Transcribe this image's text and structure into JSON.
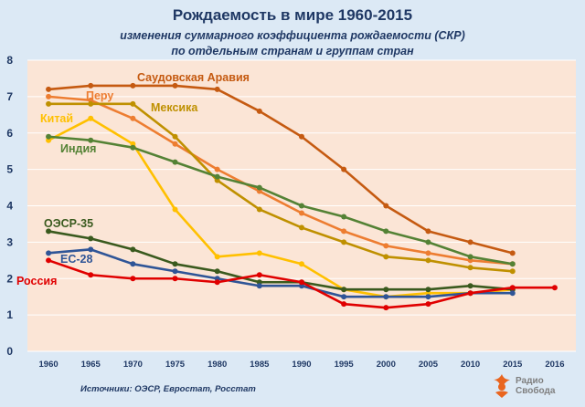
{
  "header": {
    "title": "Рождаемость в мире 1960-2015",
    "subtitle_line1": "изменения суммарного коэффициента рождаемости (СКР)",
    "subtitle_line2": "по отдельным странам и группам стран"
  },
  "footer": {
    "source": "Источники: ОЭСР, Евростат, Росстат",
    "logo_line1": "Радио",
    "logo_line2": "Свобода"
  },
  "colors": {
    "plot_bg": "#fbe5d6",
    "logo_orange": "#e9651f"
  },
  "chart_data": {
    "type": "line",
    "title": "Рождаемость в мире 1960-2015",
    "x": [
      1960,
      1965,
      1970,
      1975,
      1980,
      1985,
      1990,
      1995,
      2000,
      2005,
      2010,
      2015,
      2016
    ],
    "ylim": [
      0,
      8
    ],
    "yticks": [
      0,
      1,
      2,
      3,
      4,
      5,
      6,
      7,
      8
    ],
    "grid": "horizontal",
    "series": [
      {
        "name": "Саудовская Аравия",
        "color": "#c55a11",
        "values": [
          7.2,
          7.3,
          7.3,
          7.3,
          7.2,
          6.6,
          5.9,
          5.0,
          4.0,
          3.3,
          3.0,
          2.7,
          null
        ]
      },
      {
        "name": "Перу",
        "color": "#ed7d31",
        "values": [
          7.0,
          6.9,
          6.4,
          5.7,
          5.0,
          4.4,
          3.8,
          3.3,
          2.9,
          2.7,
          2.5,
          2.4,
          null
        ]
      },
      {
        "name": "Мексика",
        "color": "#bf9000",
        "values": [
          6.8,
          6.8,
          6.8,
          5.9,
          4.7,
          3.9,
          3.4,
          3.0,
          2.6,
          2.5,
          2.3,
          2.2,
          null
        ]
      },
      {
        "name": "Китай",
        "color": "#ffc000",
        "values": [
          5.8,
          6.4,
          5.7,
          3.9,
          2.6,
          2.7,
          2.4,
          1.7,
          1.5,
          1.6,
          1.6,
          1.7,
          null
        ]
      },
      {
        "name": "Индия",
        "color": "#548235",
        "values": [
          5.9,
          5.8,
          5.6,
          5.2,
          4.8,
          4.5,
          4.0,
          3.7,
          3.3,
          3.0,
          2.6,
          2.4,
          null
        ]
      },
      {
        "name": "ОЭСР-35",
        "color": "#3a5a1e",
        "values": [
          3.3,
          3.1,
          2.8,
          2.4,
          2.2,
          1.9,
          1.9,
          1.7,
          1.7,
          1.7,
          1.8,
          1.7,
          null
        ]
      },
      {
        "name": "ЕС-28",
        "color": "#2f5597",
        "values": [
          2.7,
          2.8,
          2.4,
          2.2,
          2.0,
          1.8,
          1.8,
          1.5,
          1.5,
          1.5,
          1.6,
          1.6,
          null
        ]
      },
      {
        "name": "Россия",
        "color": "#e00000",
        "values": [
          2.5,
          2.1,
          2.0,
          2.0,
          1.9,
          2.1,
          1.9,
          1.3,
          1.2,
          1.3,
          1.6,
          1.75,
          1.75
        ]
      }
    ]
  }
}
